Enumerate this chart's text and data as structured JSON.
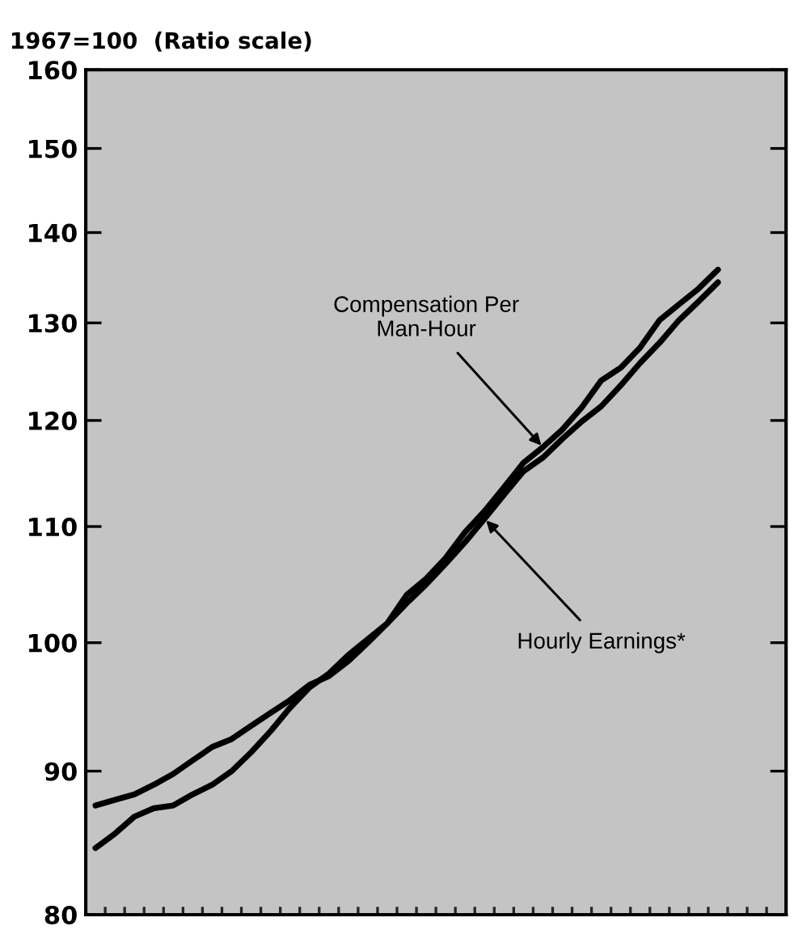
{
  "chart_data": {
    "type": "line",
    "ylabel": "1967=100  (Ratio scale)",
    "log": true,
    "categories": [
      null,
      null,
      null,
      null,
      null,
      null,
      null,
      null,
      null,
      null,
      null,
      null,
      null,
      null,
      null,
      null,
      null,
      null,
      null,
      null,
      null,
      null,
      null,
      null,
      null,
      null,
      null,
      null,
      null,
      null,
      null,
      null,
      null,
      null,
      null,
      null
    ],
    "series": [
      {
        "color": "#000000",
        "values": [
          84.5,
          85.5,
          86.7,
          87.3,
          87.5,
          88.3,
          89.0,
          90.0,
          91.4,
          93.0,
          94.8,
          96.4,
          97.5,
          99.0,
          100.3,
          101.6,
          104.0,
          105.4,
          107.2,
          109.5,
          111.4,
          113.6,
          115.9,
          117.4,
          119.1,
          121.3,
          124.0,
          125.3,
          127.4,
          130.3,
          132.0,
          133.7,
          135.8,
          null,
          null,
          null
        ]
      },
      {
        "color": "#000000",
        "values": [
          87.5,
          87.9,
          88.3,
          89.0,
          89.8,
          90.8,
          91.8,
          92.4,
          93.4,
          94.4,
          95.4,
          96.6,
          97.3,
          98.5,
          100.0,
          101.6,
          103.3,
          104.9,
          106.7,
          108.6,
          110.7,
          112.9,
          115.1,
          116.4,
          118.2,
          119.9,
          121.4,
          123.5,
          125.8,
          127.9,
          130.3,
          132.3,
          134.4,
          null,
          null,
          null
        ]
      }
    ],
    "ylim": [
      80,
      160
    ],
    "yticks": [
      80,
      90,
      100,
      110,
      120,
      130,
      140,
      150,
      160
    ],
    "annotations": [
      "Compensation Per\nMan-Hour",
      "Hourly Earnings*"
    ],
    "grid": false,
    "legend": false,
    "marker": "none",
    "line_style": "solid"
  }
}
